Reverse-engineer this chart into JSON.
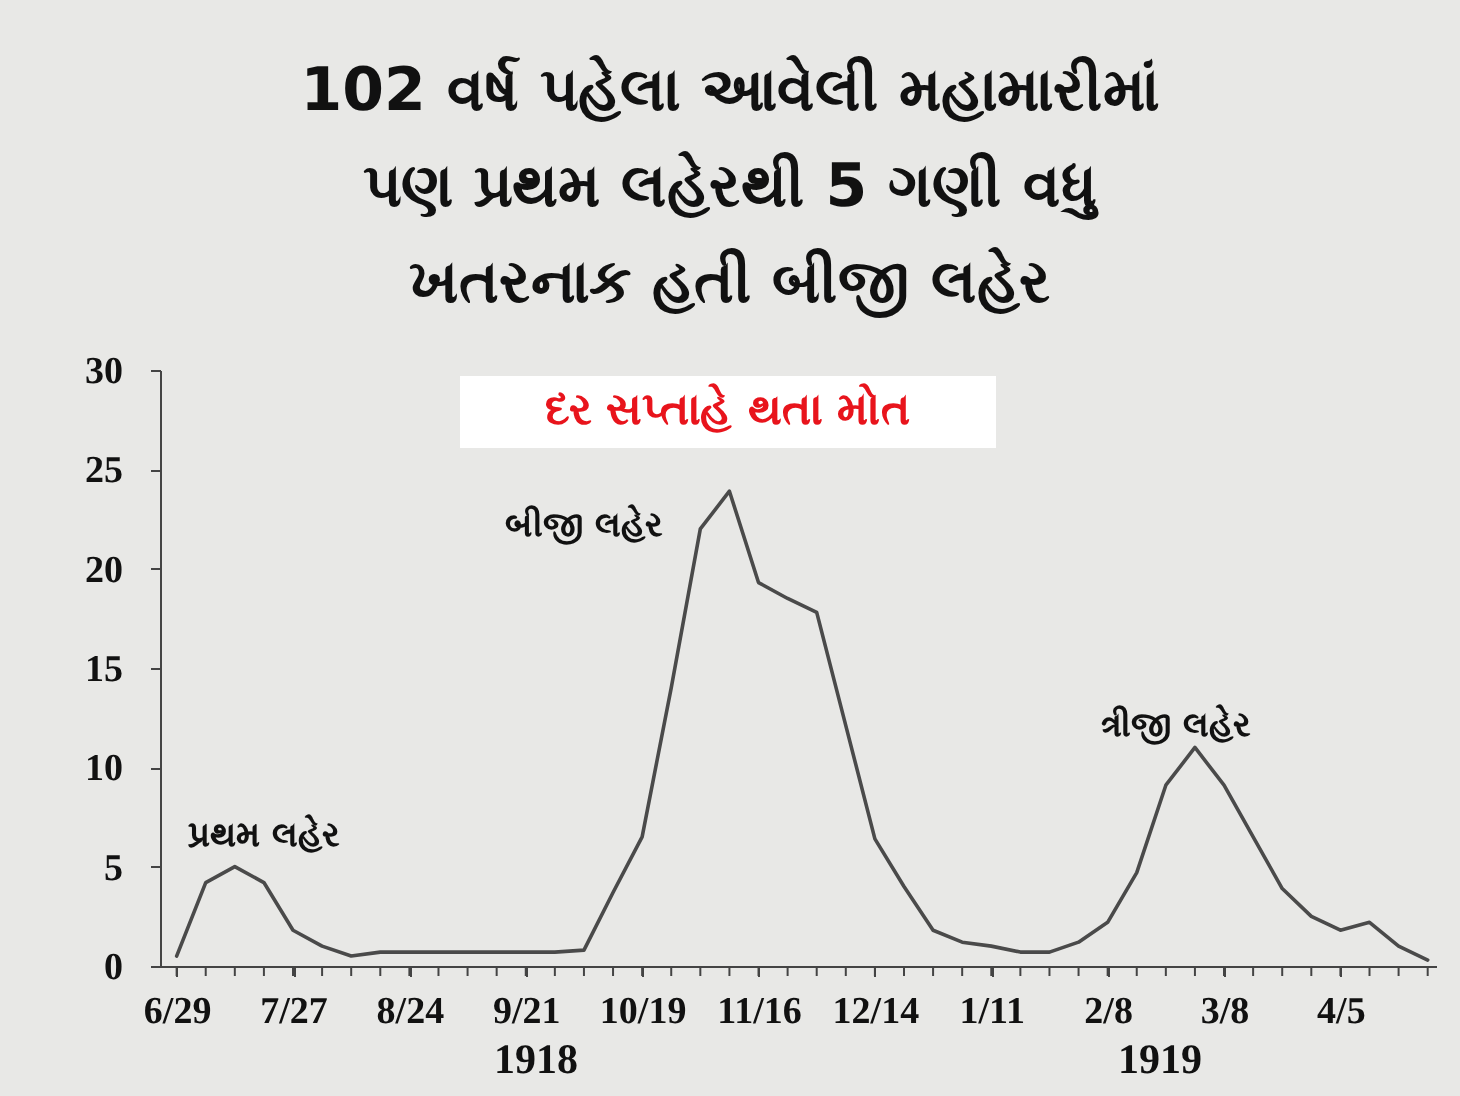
{
  "chart_data": {
    "type": "line",
    "title": "102 વર્ષ પહેલા આવેલી મહામારીમાં\nપણ પ્રથમ લહેરથી 5 ગણી વધુ\nખતરનાક હતી બીજી લહેર",
    "subtitle": "દર સપ્તાહે થતા મોત",
    "x": [
      "1918-06-29",
      "1918-07-06",
      "1918-07-13",
      "1918-07-20",
      "1918-07-27",
      "1918-08-03",
      "1918-08-10",
      "1918-08-17",
      "1918-08-24",
      "1918-08-31",
      "1918-09-07",
      "1918-09-14",
      "1918-09-21",
      "1918-09-28",
      "1918-10-05",
      "1918-10-12",
      "1918-10-19",
      "1918-10-26",
      "1918-11-02",
      "1918-11-09",
      "1918-11-16",
      "1918-11-23",
      "1918-11-30",
      "1918-12-07",
      "1918-12-14",
      "1918-12-21",
      "1918-12-28",
      "1919-01-04",
      "1919-01-11",
      "1919-01-18",
      "1919-01-25",
      "1919-02-01",
      "1919-02-08",
      "1919-02-15",
      "1919-02-22",
      "1919-03-01",
      "1919-03-08",
      "1919-03-15",
      "1919-03-22",
      "1919-03-29",
      "1919-04-05",
      "1919-04-12",
      "1919-04-19",
      "1919-04-26"
    ],
    "series": [
      {
        "color": "#4a4a4a",
        "values": [
          0.5,
          4.2,
          5.0,
          4.2,
          1.8,
          1.0,
          0.5,
          0.7,
          0.7,
          0.7,
          0.7,
          0.7,
          0.7,
          0.7,
          0.8,
          3.7,
          6.5,
          14,
          22,
          23.9,
          19.3,
          18.5,
          17.8,
          12.1,
          6.4,
          4.0,
          1.8,
          1.2,
          1.0,
          0.7,
          0.7,
          1.2,
          2.2,
          4.7,
          9.1,
          11.0,
          9.1,
          6.5,
          3.9,
          2.5,
          1.8,
          2.2,
          1.0,
          0.3
        ]
      }
    ],
    "xlim": [
      "1918-06-25",
      "1919-04-28"
    ],
    "xticks": [
      {
        "value": "1918-06-29",
        "label": "6/29"
      },
      {
        "value": "1918-07-06",
        "label": null
      },
      {
        "value": "1918-07-13",
        "label": null
      },
      {
        "value": "1918-07-20",
        "label": null
      },
      {
        "value": "1918-07-27",
        "label": "7/27"
      },
      {
        "value": "1918-08-03",
        "label": null
      },
      {
        "value": "1918-08-10",
        "label": null
      },
      {
        "value": "1918-08-17",
        "label": null
      },
      {
        "value": "1918-08-24",
        "label": "8/24"
      },
      {
        "value": "1918-08-31",
        "label": null
      },
      {
        "value": "1918-09-07",
        "label": null
      },
      {
        "value": "1918-09-14",
        "label": null
      },
      {
        "value": "1918-09-21",
        "label": "9/21"
      },
      {
        "value": "1918-09-28",
        "label": null
      },
      {
        "value": "1918-10-05",
        "label": null
      },
      {
        "value": "1918-10-12",
        "label": null
      },
      {
        "value": "1918-10-19",
        "label": "10/19"
      },
      {
        "value": "1918-10-26",
        "label": null
      },
      {
        "value": "1918-11-02",
        "label": null
      },
      {
        "value": "1918-11-09",
        "label": null
      },
      {
        "value": "1918-11-16",
        "label": "11/16"
      },
      {
        "value": "1918-11-23",
        "label": null
      },
      {
        "value": "1918-11-30",
        "label": null
      },
      {
        "value": "1918-12-07",
        "label": null
      },
      {
        "value": "1918-12-14",
        "label": "12/14"
      },
      {
        "value": "1918-12-21",
        "label": null
      },
      {
        "value": "1918-12-28",
        "label": null
      },
      {
        "value": "1919-01-04",
        "label": null
      },
      {
        "value": "1919-01-11",
        "label": "1/11"
      },
      {
        "value": "1919-01-18",
        "label": null
      },
      {
        "value": "1919-01-25",
        "label": null
      },
      {
        "value": "1919-02-01",
        "label": null
      },
      {
        "value": "1919-02-08",
        "label": "2/8"
      },
      {
        "value": "1919-02-15",
        "label": null
      },
      {
        "value": "1919-02-22",
        "label": null
      },
      {
        "value": "1919-03-01",
        "label": null
      },
      {
        "value": "1919-03-08",
        "label": "3/8"
      },
      {
        "value": "1919-03-15",
        "label": null
      },
      {
        "value": "1919-03-22",
        "label": null
      },
      {
        "value": "1919-03-29",
        "label": null
      },
      {
        "value": "1919-04-05",
        "label": "4/5"
      },
      {
        "value": "1919-04-12",
        "label": null
      },
      {
        "value": "1919-04-19",
        "label": null
      },
      {
        "value": "1919-04-26",
        "label": null
      }
    ],
    "ylim": [
      0,
      30
    ],
    "yticks": [
      0,
      5,
      10,
      15,
      20,
      25,
      30
    ],
    "annotations": [
      "પ્રથમ લહેર",
      "બીજી લહેર",
      "ત્રીજી લહેર",
      "1918",
      "1919"
    ],
    "grid": false
  }
}
